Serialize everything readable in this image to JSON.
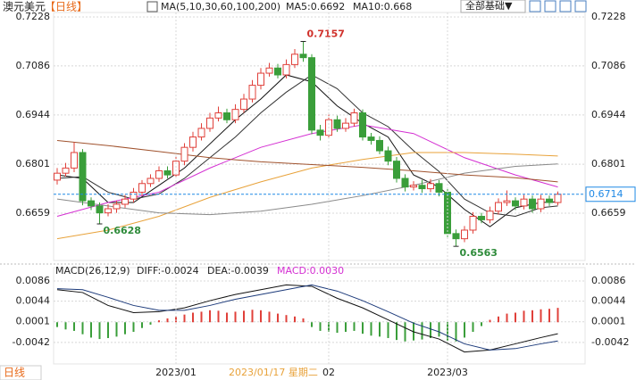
{
  "header": {
    "symbol": "澳元美元",
    "period": "【日线】",
    "indicator": "MA(5,10,30,60,100,200)",
    "menu": "全部基础▼"
  },
  "footer": {
    "period_tab": "日线",
    "crosshair_date": "2023/01/17 星期二"
  },
  "chart_data": [
    {
      "type": "candlestick",
      "ylim": [
        0.6522,
        0.7241
      ],
      "yticks": [
        0.6659,
        0.6801,
        0.6944,
        0.7086,
        0.7228
      ],
      "grid": true,
      "up_color": "#e0403a",
      "down_color": "#3a9e3a",
      "open": [
        0.6755,
        0.6775,
        0.679,
        0.6835,
        0.6695,
        0.668,
        0.666,
        0.6672,
        0.6685,
        0.67,
        0.672,
        0.6745,
        0.676,
        0.6782,
        0.677,
        0.681,
        0.685,
        0.688,
        0.6905,
        0.6935,
        0.695,
        0.693,
        0.696,
        0.699,
        0.703,
        0.7065,
        0.708,
        0.706,
        0.709,
        0.712,
        0.711,
        0.69,
        0.6885,
        0.693,
        0.6905,
        0.692,
        0.695,
        0.688,
        0.687,
        0.684,
        0.681,
        0.676,
        0.6735,
        0.674,
        0.673,
        0.6745,
        0.672,
        0.66,
        0.6585,
        0.661,
        0.665,
        0.664,
        0.6665,
        0.669,
        0.6695,
        0.668,
        0.67,
        0.6672,
        0.67,
        0.669
      ],
      "high": [
        0.679,
        0.6805,
        0.6865,
        0.6845,
        0.6705,
        0.669,
        0.6685,
        0.6695,
        0.6712,
        0.6732,
        0.6755,
        0.6772,
        0.6795,
        0.6795,
        0.6822,
        0.6862,
        0.6895,
        0.692,
        0.695,
        0.6968,
        0.6962,
        0.6975,
        0.7005,
        0.7045,
        0.708,
        0.7095,
        0.7092,
        0.7105,
        0.7135,
        0.7157,
        0.712,
        0.6915,
        0.6945,
        0.6942,
        0.6935,
        0.6962,
        0.696,
        0.6892,
        0.6882,
        0.6852,
        0.6822,
        0.6772,
        0.6752,
        0.6755,
        0.6758,
        0.6755,
        0.673,
        0.6612,
        0.6622,
        0.6662,
        0.666,
        0.6678,
        0.6702,
        0.6725,
        0.6705,
        0.6712,
        0.671,
        0.6712,
        0.671,
        0.6722
      ],
      "low": [
        0.6742,
        0.6765,
        0.6778,
        0.6682,
        0.6668,
        0.6628,
        0.665,
        0.666,
        0.6675,
        0.669,
        0.671,
        0.6735,
        0.675,
        0.676,
        0.676,
        0.6798,
        0.6838,
        0.687,
        0.6895,
        0.6925,
        0.692,
        0.692,
        0.695,
        0.698,
        0.7018,
        0.7055,
        0.705,
        0.705,
        0.708,
        0.7098,
        0.6888,
        0.687,
        0.6875,
        0.6895,
        0.6895,
        0.691,
        0.687,
        0.6858,
        0.683,
        0.6798,
        0.6748,
        0.6722,
        0.6725,
        0.6718,
        0.672,
        0.6708,
        0.659,
        0.6563,
        0.6575,
        0.66,
        0.663,
        0.663,
        0.6655,
        0.668,
        0.6668,
        0.667,
        0.666,
        0.6662,
        0.668,
        0.6682
      ],
      "close": [
        0.6775,
        0.679,
        0.6835,
        0.6695,
        0.668,
        0.666,
        0.6672,
        0.6685,
        0.67,
        0.672,
        0.6745,
        0.676,
        0.6782,
        0.677,
        0.681,
        0.685,
        0.688,
        0.6905,
        0.6935,
        0.695,
        0.693,
        0.696,
        0.699,
        0.703,
        0.7065,
        0.708,
        0.706,
        0.709,
        0.712,
        0.711,
        0.69,
        0.6885,
        0.693,
        0.6905,
        0.692,
        0.695,
        0.688,
        0.687,
        0.684,
        0.681,
        0.676,
        0.6735,
        0.674,
        0.673,
        0.6745,
        0.672,
        0.66,
        0.6585,
        0.661,
        0.665,
        0.664,
        0.6665,
        0.669,
        0.6695,
        0.668,
        0.67,
        0.6672,
        0.67,
        0.669,
        0.6714
      ],
      "series": [
        {
          "name": "MA5:0.6692",
          "color": "#111111",
          "x": [
            0,
            3,
            6,
            9,
            12,
            15,
            18,
            21,
            24,
            27,
            30,
            33,
            36,
            39,
            42,
            45,
            48,
            51,
            54,
            57,
            59
          ],
          "values": [
            0.677,
            0.676,
            0.669,
            0.669,
            0.674,
            0.679,
            0.686,
            0.693,
            0.699,
            0.706,
            0.704,
            0.697,
            0.692,
            0.688,
            0.677,
            0.6735,
            0.667,
            0.662,
            0.6675,
            0.669,
            0.6692
          ]
        },
        {
          "name": "MA10:0.668",
          "color": "#333333",
          "x": [
            0,
            3,
            6,
            9,
            12,
            15,
            18,
            21,
            24,
            27,
            30,
            33,
            36,
            39,
            42,
            45,
            48,
            51,
            54,
            57,
            59
          ],
          "values": [
            0.676,
            0.6765,
            0.672,
            0.67,
            0.6715,
            0.676,
            0.682,
            0.688,
            0.695,
            0.701,
            0.706,
            0.702,
            0.695,
            0.691,
            0.684,
            0.678,
            0.67,
            0.666,
            0.665,
            0.6675,
            0.668
          ]
        },
        {
          "color": "#d42fd2",
          "x": [
            0,
            6,
            12,
            18,
            24,
            30,
            36,
            42,
            48,
            54,
            59
          ],
          "values": [
            0.665,
            0.669,
            0.672,
            0.679,
            0.685,
            0.689,
            0.6915,
            0.689,
            0.682,
            0.677,
            0.6735
          ]
        },
        {
          "color": "#e8a23a",
          "x": [
            0,
            6,
            12,
            18,
            24,
            30,
            36,
            42,
            48,
            54,
            59
          ],
          "values": [
            0.6585,
            0.661,
            0.665,
            0.6705,
            0.675,
            0.679,
            0.6815,
            0.6835,
            0.6835,
            0.683,
            0.6825
          ]
        },
        {
          "color": "#8a8a8a",
          "x": [
            0,
            6,
            12,
            18,
            24,
            30,
            36,
            42,
            48,
            54,
            59
          ],
          "values": [
            0.67,
            0.668,
            0.666,
            0.6655,
            0.6665,
            0.6685,
            0.671,
            0.674,
            0.6775,
            0.6795,
            0.6802
          ]
        },
        {
          "color": "#a0522d",
          "x": [
            0,
            6,
            12,
            18,
            24,
            30,
            36,
            42,
            48,
            54,
            59
          ],
          "values": [
            0.687,
            0.6855,
            0.6838,
            0.682,
            0.6808,
            0.68,
            0.6792,
            0.6782,
            0.677,
            0.6762,
            0.675
          ]
        }
      ],
      "annotations": [
        {
          "x": 29,
          "value": 0.7157,
          "color": "#d0302a",
          "side": "top"
        },
        {
          "x": 5,
          "value": 0.6628,
          "color": "#2e8b3a",
          "side": "bottom"
        },
        {
          "x": 47,
          "value": 0.6563,
          "color": "#2e8b3a",
          "side": "bottom"
        }
      ],
      "last_price": 0.6714,
      "last_price_color": "#1e88e5"
    },
    {
      "type": "macd",
      "title": "MACD(26,12,9)",
      "ylim": [
        -0.0087,
        0.0114
      ],
      "yticks": [
        -0.0042,
        0.0001,
        0.0044,
        0.0086
      ],
      "grid": true,
      "xticks": [
        {
          "value": 14,
          "label": "2023/01"
        },
        {
          "value": 32,
          "label": "02"
        },
        {
          "value": 46,
          "label": "2023/03"
        }
      ],
      "series": [
        {
          "name": "DIFF:-0.0024",
          "color": "#111111",
          "x": [
            0,
            3,
            6,
            9,
            12,
            15,
            18,
            21,
            24,
            27,
            30,
            33,
            36,
            39,
            42,
            45,
            48,
            51,
            54,
            57,
            59
          ],
          "values": [
            0.0068,
            0.0062,
            0.0035,
            0.002,
            0.0022,
            0.003,
            0.0045,
            0.0058,
            0.0068,
            0.0078,
            0.0075,
            0.005,
            0.003,
            0.0005,
            -0.002,
            -0.0035,
            -0.0062,
            -0.0058,
            -0.0045,
            -0.0032,
            -0.0024
          ]
        },
        {
          "name": "DEA:-0.0039",
          "color": "#1c3a7a",
          "x": [
            0,
            3,
            6,
            9,
            12,
            15,
            18,
            21,
            24,
            27,
            30,
            33,
            36,
            39,
            42,
            45,
            48,
            51,
            54,
            57,
            59
          ],
          "values": [
            0.007,
            0.0068,
            0.0052,
            0.0035,
            0.0025,
            0.0025,
            0.0035,
            0.0048,
            0.0058,
            0.0068,
            0.0078,
            0.0065,
            0.0045,
            0.0022,
            -0.0002,
            -0.002,
            -0.0045,
            -0.0058,
            -0.0055,
            -0.0045,
            -0.0039
          ]
        }
      ],
      "histogram": {
        "name": "MACD:0.0030",
        "color": "#d42fd2",
        "up_color": "#e0403a",
        "down_color": "#3a9e3a",
        "values": [
          -0.001,
          -0.0015,
          -0.0018,
          -0.0025,
          -0.0032,
          -0.0035,
          -0.0033,
          -0.003,
          -0.0025,
          -0.002,
          -0.0012,
          -0.0005,
          0.0004,
          0.0008,
          0.0012,
          0.0016,
          0.002,
          0.0022,
          0.0025,
          0.0024,
          0.002,
          0.0022,
          0.0024,
          0.0026,
          0.0025,
          0.0022,
          0.0018,
          0.0015,
          0.0012,
          0.0008,
          -0.001,
          -0.0018,
          -0.002,
          -0.0022,
          -0.002,
          -0.0018,
          -0.0024,
          -0.0028,
          -0.003,
          -0.0033,
          -0.0037,
          -0.004,
          -0.0038,
          -0.0036,
          -0.0033,
          -0.003,
          -0.0038,
          -0.004,
          -0.0032,
          -0.002,
          -0.0008,
          0.0005,
          0.0012,
          0.0018,
          0.002,
          0.0024,
          0.0025,
          0.0027,
          0.0028,
          0.003
        ]
      }
    }
  ]
}
